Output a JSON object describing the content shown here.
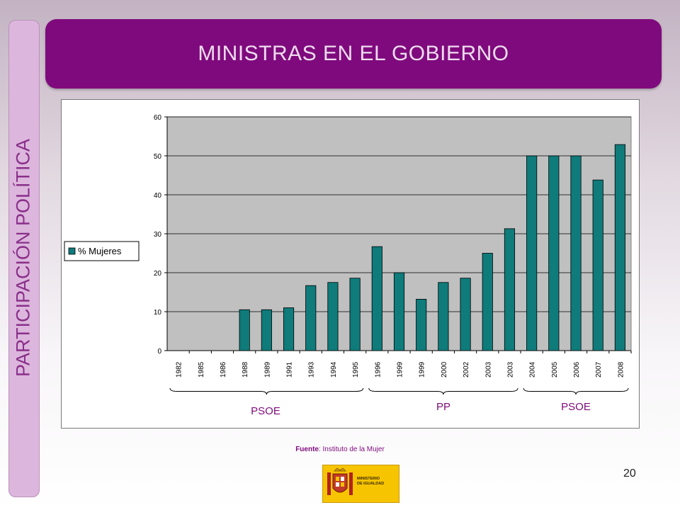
{
  "slide": {
    "title": "MINISTRAS EN EL GOBIERNO",
    "side_label": "PARTICIPACIÓN POLÍTICA",
    "source_prefix": "Fuente",
    "source_text": ": Instituto de la Mujer",
    "page_number": "20",
    "logo_text": "MINISTERIO\nDE IGUALDAD"
  },
  "colors": {
    "banner": "#7f0a7d",
    "side_text": "#8a2f8a",
    "bar": "#0f7b7b",
    "plot_bg": "#c0c0c0"
  },
  "chart_data": {
    "type": "bar",
    "categories": [
      "1982",
      "1985",
      "1986",
      "1988",
      "1989",
      "1991",
      "1993",
      "1994",
      "1995",
      "1996",
      "1999",
      "1999",
      "2000",
      "2002",
      "2003",
      "2003",
      "2004",
      "2005",
      "2006",
      "2007",
      "2008"
    ],
    "series": [
      {
        "name": "% Mujeres",
        "values": [
          0,
          0,
          0,
          10.5,
          10.5,
          11,
          16.7,
          17.5,
          18.6,
          26.7,
          20,
          13.2,
          17.5,
          18.6,
          25,
          31.3,
          50,
          50,
          50,
          43.8,
          52.9
        ]
      }
    ],
    "ylim": [
      0,
      60
    ],
    "yticks": [
      0,
      10,
      20,
      30,
      40,
      50,
      60
    ],
    "grid": true,
    "legend_position": "left",
    "groups": [
      {
        "label": "PSOE",
        "from": 0,
        "to": 8
      },
      {
        "label": "PP",
        "from": 9,
        "to": 15
      },
      {
        "label": "PSOE",
        "from": 16,
        "to": 20
      }
    ]
  }
}
